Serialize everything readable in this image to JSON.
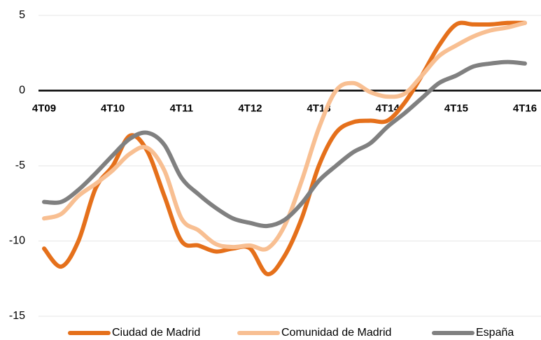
{
  "chart_data": {
    "type": "line",
    "categories": [
      "4T09",
      null,
      null,
      null,
      "4T10",
      null,
      null,
      null,
      "4T11",
      null,
      null,
      null,
      "4T12",
      null,
      null,
      null,
      "4T13",
      null,
      null,
      null,
      "4T14",
      null,
      null,
      null,
      "4T15",
      null,
      null,
      null,
      "4T16"
    ],
    "series": [
      {
        "name": "Ciudad de Madrid",
        "color": "#e5701b",
        "values": [
          -10.5,
          -11.7,
          -10,
          -6.5,
          -5,
          -3,
          -4,
          -7,
          -10,
          -10.3,
          -10.7,
          -10.5,
          -10.5,
          -12.2,
          -11,
          -8.5,
          -5,
          -2.8,
          -2.1,
          -2,
          -2,
          -0.8,
          1,
          3,
          4.4,
          4.4,
          4.4,
          4.5,
          4.5
        ]
      },
      {
        "name": "Comunidad de Madrid",
        "color": "#f8bf92",
        "values": [
          -8.5,
          -8.2,
          -7,
          -6.2,
          -5.3,
          -4.2,
          -3.8,
          -5.3,
          -8.5,
          -9.3,
          -10.2,
          -10.4,
          -10.3,
          -10.5,
          -9,
          -6,
          -2.5,
          0,
          0.5,
          -0.1,
          -0.4,
          -0.2,
          1,
          2.3,
          3,
          3.6,
          4,
          4.2,
          4.5
        ]
      },
      {
        "name": "España",
        "color": "#808080",
        "values": [
          -7.4,
          -7.4,
          -6.6,
          -5.5,
          -4.3,
          -3.2,
          -2.8,
          -3.6,
          -5.8,
          -6.9,
          -7.8,
          -8.5,
          -8.8,
          -9,
          -8.6,
          -7.5,
          -6,
          -5,
          -4.1,
          -3.5,
          -2.4,
          -1.5,
          -0.5,
          0.5,
          1,
          1.6,
          1.8,
          1.9,
          1.8
        ]
      }
    ],
    "ylim": [
      -15,
      5
    ],
    "yticks": [
      -15,
      -10,
      -5,
      0,
      5
    ],
    "grid": true,
    "legend": "bottom"
  }
}
